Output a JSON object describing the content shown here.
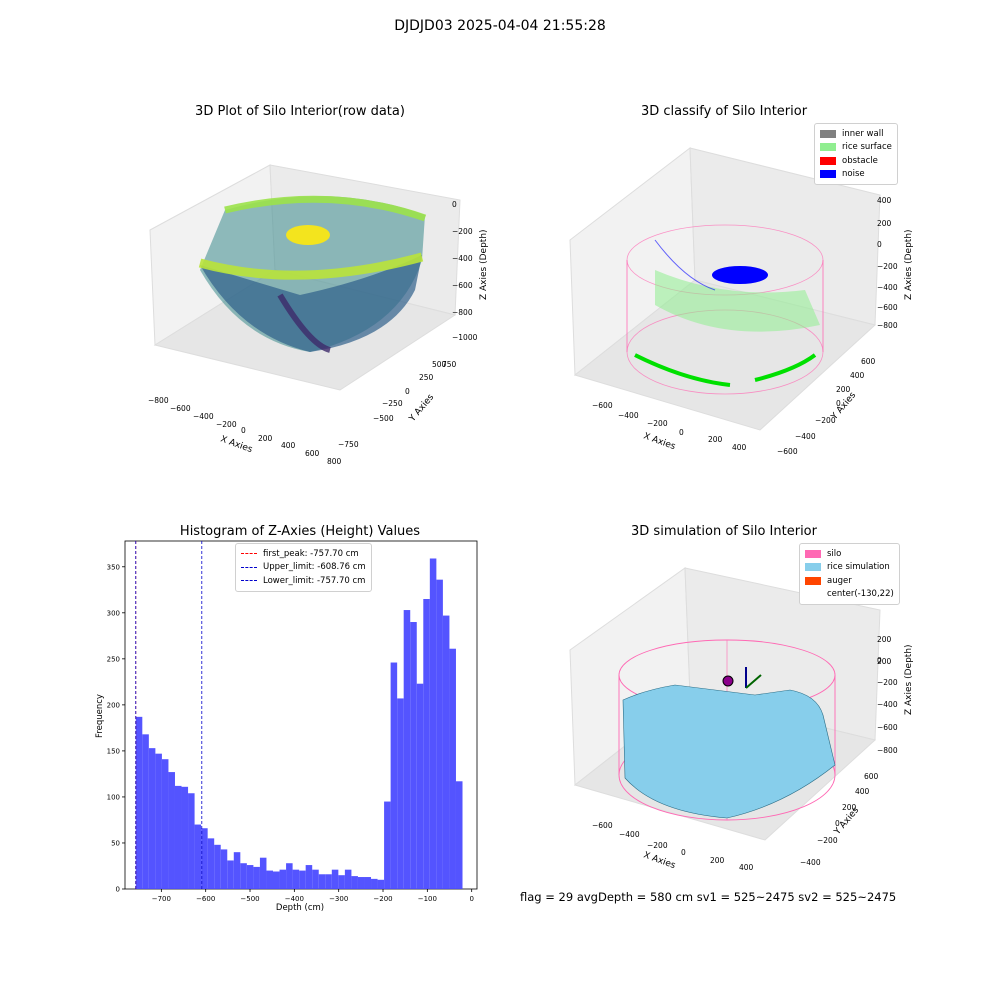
{
  "suptitle": "DJDJD03 2025-04-04 21:55:28",
  "colors": {
    "inner_wall": "#808080",
    "rice_surface": "#90ee90",
    "obstacle": "#ff0000",
    "noise": "#0000ff",
    "silo": "#ff69b4",
    "rice_sim": "#87ceeb",
    "auger": "#ff4500",
    "hist_bar": "#4b4bff",
    "first_peak": "#ff0000",
    "limits": "#0000cc"
  },
  "panels": {
    "raw": {
      "title": "3D Plot of Silo Interior(row data)",
      "x_label": "X Axies",
      "y_label": "Y Axies",
      "z_label": "Z Axies (Depth)",
      "x_ticks": [
        "−800",
        "−600",
        "−400",
        "−200",
        "0",
        "200",
        "400",
        "600",
        "800"
      ],
      "y_ticks": [
        "−750",
        "−500",
        "−250",
        "0",
        "250",
        "500",
        "750"
      ],
      "z_ticks": [
        "0",
        "−200",
        "−400",
        "−600",
        "−800",
        "−1000"
      ]
    },
    "classify": {
      "title": "3D classify of Silo Interior",
      "x_label": "X Axies",
      "y_label": "Y Axies",
      "z_label": "Z Axies (Depth)",
      "x_ticks": [
        "−600",
        "−400",
        "−200",
        "0",
        "200",
        "400"
      ],
      "y_ticks": [
        "−600",
        "−400",
        "−200",
        "0",
        "200",
        "400",
        "600"
      ],
      "z_ticks": [
        "400",
        "200",
        "0",
        "−200",
        "−400",
        "−600",
        "−800"
      ],
      "legend": [
        {
          "label": "inner wall",
          "color_key": "inner_wall"
        },
        {
          "label": "rice surface",
          "color_key": "rice_surface"
        },
        {
          "label": "obstacle",
          "color_key": "obstacle"
        },
        {
          "label": "noise",
          "color_key": "noise"
        }
      ]
    },
    "simulation": {
      "title": "3D simulation of Silo Interior",
      "x_label": "X Axies",
      "y_label": "Y Axies",
      "z_label": "Z Axies (Depth)",
      "x_ticks": [
        "−600",
        "−400",
        "−200",
        "0",
        "200",
        "400"
      ],
      "y_ticks": [
        "−400",
        "−200",
        "0",
        "200",
        "400",
        "600"
      ],
      "z_ticks": [
        "200",
        "0",
        "−200",
        "−400",
        "−600",
        "−800"
      ],
      "legend": [
        {
          "label": "silo",
          "color_key": "silo"
        },
        {
          "label": "rice simulation",
          "color_key": "rice_sim"
        },
        {
          "label": "auger",
          "color_key": "auger"
        },
        {
          "label": "center(-130,22)",
          "color_key": ""
        }
      ]
    }
  },
  "chart_data": {
    "type": "bar",
    "title": "Histogram of Z-Axies (Height) Values",
    "xlabel": "Depth (cm)",
    "ylabel": "Frequency",
    "xlim": [
      -782,
      12
    ],
    "ylim": [
      0,
      378
    ],
    "x_ticks": [
      -700,
      -600,
      -500,
      -400,
      -300,
      -200,
      -100,
      0
    ],
    "x_tick_labels": [
      "−700",
      "−600",
      "−500",
      "−400",
      "−300",
      "−200",
      "−100",
      "0"
    ],
    "y_ticks": [
      0,
      50,
      100,
      150,
      200,
      250,
      300,
      350
    ],
    "y_tick_labels": [
      "0",
      "50",
      "100",
      "150",
      "200",
      "250",
      "300",
      "350"
    ],
    "bin_start": -757.7,
    "bin_width": 14.74,
    "values": [
      187,
      168,
      153,
      147,
      141,
      127,
      112,
      111,
      104,
      70,
      66,
      55,
      48,
      43,
      31,
      40,
      28,
      26,
      24,
      34,
      20,
      19,
      21,
      28,
      21,
      20,
      26,
      21,
      16,
      16,
      21,
      15,
      21,
      14,
      13,
      13,
      11,
      10,
      95,
      246,
      207,
      303,
      290,
      223,
      315,
      359,
      336,
      297,
      261,
      117
    ],
    "lines": [
      {
        "name": "first_peak",
        "label": "first_peak: -757.70 cm",
        "x": -757.7,
        "color_key": "first_peak"
      },
      {
        "name": "upper_limit",
        "label": "Upper_limit: -608.76 cm",
        "x": -608.76,
        "color_key": "limits"
      },
      {
        "name": "lower_limit",
        "label": "Lower_limit: -757.70 cm",
        "x": -757.7,
        "color_key": "limits"
      }
    ]
  },
  "footer": {
    "text": "flag = 29  avgDepth = 580 cm  sv1 = 525~2475  sv2 = 525~2475"
  }
}
